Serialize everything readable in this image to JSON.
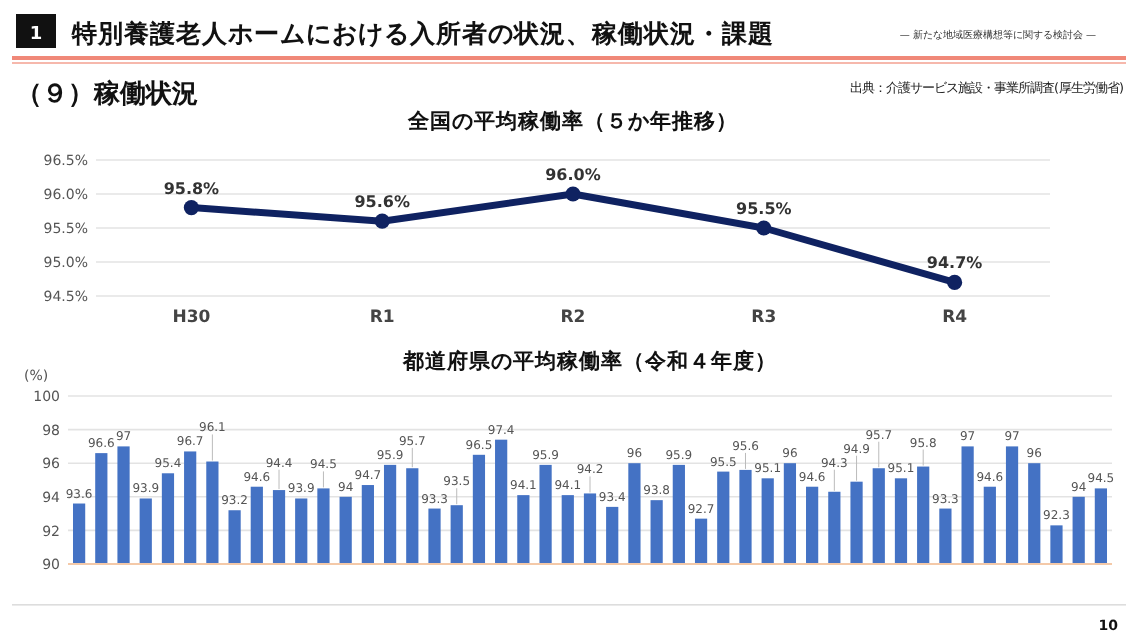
{
  "chart_data": [
    {
      "type": "line",
      "title": "全国の平均稼働率（５か年推移）",
      "categories": [
        "H30",
        "R1",
        "R2",
        "R3",
        "R4"
      ],
      "series": [
        {
          "color": "#0f2261",
          "values": [
            95.8,
            95.6,
            96.0,
            95.5,
            94.7
          ],
          "value_labels": [
            "95.8%",
            "95.6%",
            "96.0%",
            "95.5%",
            "94.7%"
          ]
        }
      ],
      "ylim": [
        94.5,
        96.5
      ],
      "yticks": [
        {
          "value": 94.5,
          "label": "94.5%"
        },
        {
          "value": 95.0,
          "label": "95.0%"
        },
        {
          "value": 95.5,
          "label": "95.5%"
        },
        {
          "value": 96.0,
          "label": "96.0%"
        },
        {
          "value": 96.5,
          "label": "96.5%"
        }
      ],
      "grid": "y",
      "marker": "circle",
      "line_style": "solid",
      "annotations": [
        "1",
        "特別養護老人ホームにおける入所者の状況、稼働状況・課題",
        "— 新たな地域医療構想等に関する検討会 —",
        "（９）稼働状況",
        "出典：介護サービス施設・事業所調査(厚生労働省)",
        "10"
      ]
    },
    {
      "type": "bar",
      "title": "都道府県の平均稼働率（令和４年度）",
      "ylabel": "(%)",
      "categories": [
        null,
        null,
        null,
        null,
        null,
        null,
        null,
        null,
        null,
        null,
        null,
        null,
        null,
        null,
        null,
        null,
        null,
        null,
        null,
        null,
        null,
        null,
        null,
        null,
        null,
        null,
        null,
        null,
        null,
        null,
        null,
        null,
        null,
        null,
        null,
        null,
        null,
        null,
        null,
        null,
        null,
        null,
        null,
        null,
        null,
        null,
        null
      ],
      "series": [
        {
          "color": "#4472c4",
          "values": [
            93.6,
            96.6,
            97,
            93.9,
            95.4,
            96.7,
            96.1,
            93.2,
            94.6,
            94.4,
            93.9,
            94.5,
            94,
            94.7,
            95.9,
            95.7,
            93.3,
            93.5,
            96.5,
            97.4,
            94.1,
            95.9,
            94.1,
            94.2,
            93.4,
            96,
            93.8,
            95.9,
            92.7,
            95.5,
            95.6,
            95.1,
            96,
            94.6,
            94.3,
            94.9,
            95.7,
            95.1,
            95.8,
            93.3,
            97,
            94.6,
            97,
            96,
            92.3,
            94,
            94.5
          ]
        }
      ],
      "ylim": [
        90,
        100
      ],
      "yticks": [
        90,
        92,
        94,
        96,
        98,
        100
      ],
      "grid": "y",
      "data_labels": true
    }
  ]
}
